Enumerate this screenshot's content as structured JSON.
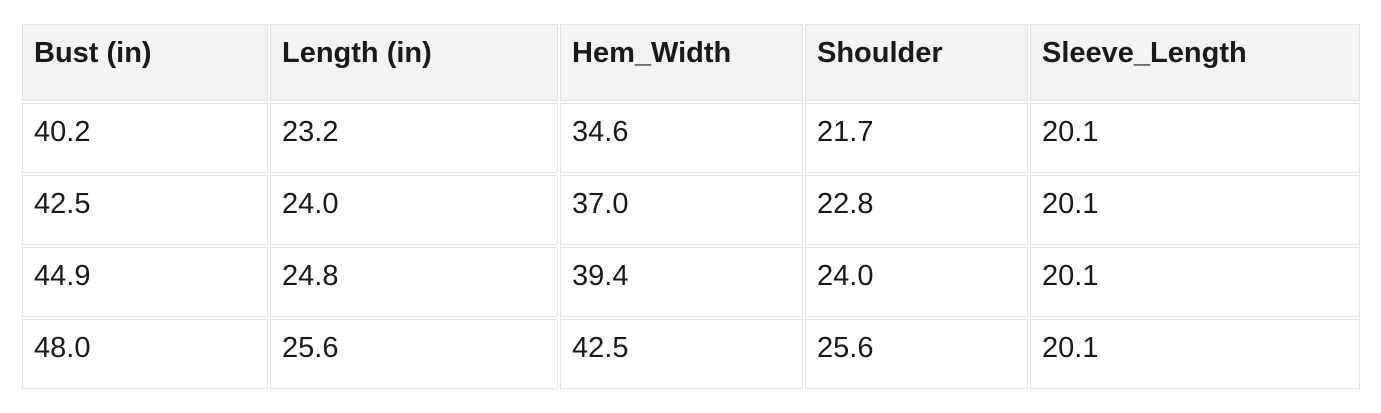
{
  "table": {
    "columns": [
      "Bust (in)",
      "Length (in)",
      "Hem_Width",
      "Shoulder",
      "Sleeve_Length"
    ],
    "rows": [
      [
        "40.2",
        "23.2",
        "34.6",
        "21.7",
        "20.1"
      ],
      [
        "42.5",
        "24.0",
        "37.0",
        "22.8",
        "20.1"
      ],
      [
        "44.9",
        "24.8",
        "39.4",
        "24.0",
        "20.1"
      ],
      [
        "48.0",
        "25.6",
        "42.5",
        "25.6",
        "20.1"
      ]
    ]
  },
  "theme": {
    "page_bg": "#ffffff",
    "header_bg": "#f3f3f3",
    "cell_bg": "#ffffff",
    "border_color": "#e2e2e2",
    "text_color": "#1a1a1a"
  }
}
